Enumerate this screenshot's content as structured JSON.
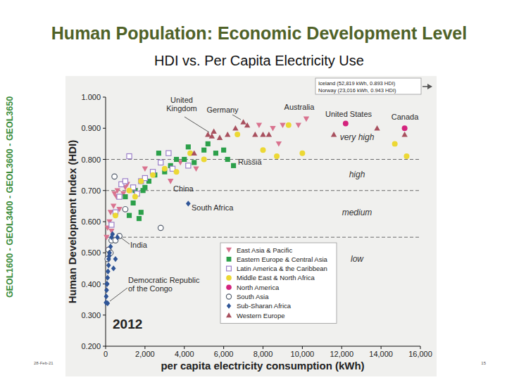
{
  "slide": {
    "title": "Human Population: Economic Development Level",
    "subtitle": "HDI vs. Per Capita Electricity Use",
    "side_text": "GEOL1600 - GEOL3400 - GEOL3600 - GEOL3650",
    "date": "28-Feb-21",
    "page": "15"
  },
  "chart_data": {
    "type": "scatter",
    "x_label": "per capita electricity consumption (kWh)",
    "y_label": "Human Development Index (HDI)",
    "year_label": "2012",
    "xlim": [
      0,
      16000
    ],
    "xticks": [
      0,
      {
        "value": 2000,
        "label": "2,000"
      },
      {
        "value": 4000,
        "label": "4,000"
      },
      {
        "value": 6000,
        "label": "6,000"
      },
      {
        "value": 8000,
        "label": "8,000"
      },
      {
        "value": 10000,
        "label": "10,000"
      },
      {
        "value": 12000,
        "label": "12,000"
      },
      {
        "value": 14000,
        "label": "14,000"
      },
      {
        "value": 16000,
        "label": "16,000"
      }
    ],
    "ylim": [
      0.2,
      1.0
    ],
    "yticks": [
      {
        "value": 0.2,
        "label": "0.200"
      },
      {
        "value": 0.3,
        "label": "0.300"
      },
      {
        "value": 0.4,
        "label": "0.400"
      },
      {
        "value": 0.5,
        "label": "0.500"
      },
      {
        "value": 0.6,
        "label": "0.600"
      },
      {
        "value": 0.7,
        "label": "0.700"
      },
      {
        "value": 0.8,
        "label": "0.800"
      },
      {
        "value": 0.9,
        "label": "0.900"
      },
      {
        "value": 1.0,
        "label": "1.000"
      }
    ],
    "grid": false,
    "legend": "lower right",
    "zone_bounds": [
      0.8,
      0.7,
      0.55
    ],
    "zone_labels": [
      "very high",
      "high",
      "medium",
      "low"
    ],
    "annotations": [
      "United\nKingdom",
      "Germany",
      "Australia",
      "United States",
      "Canada",
      "Russia",
      "China",
      "South Africa",
      "India",
      "Democratic Republic\nof the Congo"
    ],
    "offscale_note": [
      "Iceland (52,819 kWh, 0.893 HDI)",
      "Norway (23,016 kWh, 0.943 HDI)"
    ],
    "series": [
      {
        "name": "East Asia & Pacific",
        "color": "#d9738f",
        "marker": "triangle-down",
        "x": [
          50,
          100,
          150,
          200,
          250,
          300,
          400,
          450,
          550,
          600,
          700,
          800,
          900,
          1000,
          1100,
          1300,
          1500,
          2000,
          3300,
          3800,
          4600,
          7800,
          8500,
          8800,
          9000,
          9800,
          10200
        ],
        "values": [
          0.55,
          0.58,
          0.51,
          0.6,
          0.63,
          0.57,
          0.65,
          0.69,
          0.68,
          0.7,
          0.64,
          0.72,
          0.69,
          0.71,
          0.72,
          0.7,
          0.7,
          0.77,
          0.73,
          0.79,
          0.77,
          0.91,
          0.9,
          0.85,
          0.91,
          0.91,
          0.93
        ]
      },
      {
        "name": "Eastern Europe & Central Asia",
        "color": "#2ca04a",
        "marker": "square",
        "x": [
          1000,
          1200,
          1400,
          1500,
          1700,
          1800,
          1900,
          2000,
          2200,
          2500,
          2700,
          2800,
          3000,
          3300,
          3600,
          4000,
          4200,
          4500,
          5000,
          5200,
          5600,
          6000,
          6200,
          6500
        ],
        "values": [
          0.68,
          0.62,
          0.66,
          0.7,
          0.61,
          0.63,
          0.7,
          0.71,
          0.73,
          0.75,
          0.82,
          0.79,
          0.76,
          0.78,
          0.8,
          0.8,
          0.84,
          0.79,
          0.83,
          0.85,
          0.82,
          0.83,
          0.8,
          0.78
        ]
      },
      {
        "name": "Latin America & the Caribbean",
        "color": "#9b7fc8",
        "marker": "square-open",
        "x": [
          300,
          500,
          700,
          800,
          1000,
          1200,
          1400,
          1600,
          1800,
          2000,
          2400,
          2800,
          3200,
          3400,
          4200
        ],
        "values": [
          0.59,
          0.63,
          0.68,
          0.72,
          0.73,
          0.81,
          0.71,
          0.69,
          0.73,
          0.74,
          0.76,
          0.79,
          0.82,
          0.77,
          0.78
        ]
      },
      {
        "name": "Middle East & North Africa",
        "color": "#ecd834",
        "marker": "circle",
        "x": [
          500,
          1200,
          1500,
          1800,
          2400,
          3000,
          3600,
          4300,
          5000,
          6700,
          8000,
          8700,
          9300,
          10000,
          14700,
          15300
        ],
        "values": [
          0.62,
          0.7,
          0.68,
          0.73,
          0.75,
          0.77,
          0.76,
          0.82,
          0.8,
          0.88,
          0.83,
          0.81,
          0.91,
          0.82,
          0.85,
          0.81
        ]
      },
      {
        "name": "North America",
        "color": "#d4237d",
        "marker": "circle",
        "x": [
          12200,
          15200
        ],
        "values": [
          0.915,
          0.9
        ]
      },
      {
        "name": "South Asia",
        "color": "#555f6e",
        "marker": "circle-open",
        "x": [
          100,
          150,
          250,
          300,
          500,
          700,
          1000,
          2800,
          450
        ],
        "values": [
          0.48,
          0.51,
          0.5,
          0.54,
          0.54,
          0.554,
          0.64,
          0.58,
          0.745
        ]
      },
      {
        "name": "Sub-Sharan Africa",
        "color": "#2f5597",
        "marker": "diamond",
        "x": [
          20,
          30,
          50,
          60,
          80,
          100,
          100,
          120,
          150,
          150,
          200,
          250,
          300,
          400,
          500,
          600,
          4200,
          350,
          180
        ],
        "values": [
          0.34,
          0.36,
          0.38,
          0.4,
          0.4,
          0.338,
          0.42,
          0.44,
          0.46,
          0.48,
          0.5,
          0.52,
          0.55,
          0.45,
          0.48,
          0.55,
          0.658,
          0.56,
          0.49
        ]
      },
      {
        "name": "Western Europe",
        "color": "#a8505e",
        "marker": "triangle-up",
        "x": [
          4500,
          5200,
          5400,
          5500,
          5800,
          6200,
          6600,
          7000,
          7200,
          7600,
          8000,
          8300,
          11600,
          13800,
          15200
        ],
        "values": [
          0.82,
          0.88,
          0.875,
          0.89,
          0.87,
          0.88,
          0.9,
          0.92,
          0.91,
          0.88,
          0.88,
          0.88,
          0.88,
          0.9,
          0.88
        ]
      }
    ]
  }
}
